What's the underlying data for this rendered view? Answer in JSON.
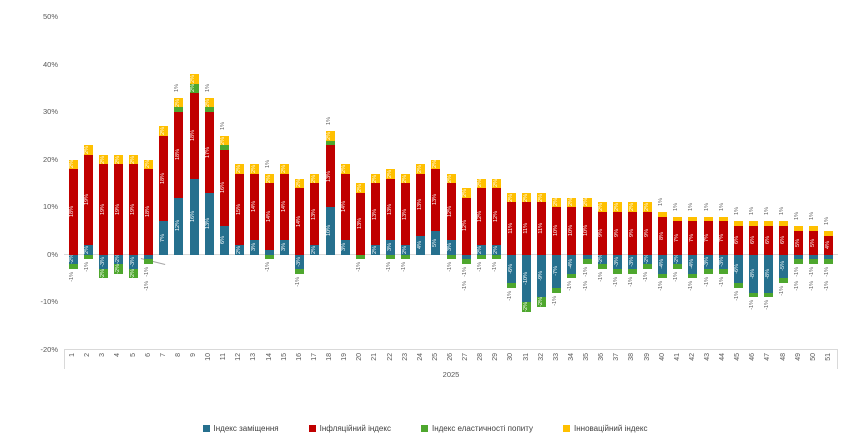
{
  "chart_data": {
    "type": "bar",
    "stacked": true,
    "title": "",
    "x_axis_group_label": "2025",
    "categories": [
      "1",
      "2",
      "3",
      "4",
      "5",
      "6",
      "7",
      "8",
      "9",
      "10",
      "11",
      "12",
      "13",
      "14",
      "15",
      "16",
      "17",
      "18",
      "19",
      "20",
      "21",
      "22",
      "23",
      "24",
      "25",
      "26",
      "27",
      "28",
      "29",
      "30",
      "31",
      "32",
      "33",
      "34",
      "35",
      "36",
      "37",
      "38",
      "39",
      "40",
      "41",
      "42",
      "43",
      "44",
      "45",
      "46",
      "47",
      "48",
      "49",
      "50",
      "51"
    ],
    "ylim": [
      -20,
      50
    ],
    "grid": false,
    "legend_position": "bottom",
    "y_ticks": [
      {
        "label": "50%",
        "value": 50
      },
      {
        "label": "40%",
        "value": 40
      },
      {
        "label": "30%",
        "value": 30
      },
      {
        "label": "20%",
        "value": 20
      },
      {
        "label": "10%",
        "value": 10
      },
      {
        "label": "0%",
        "value": 0
      },
      {
        "label": "-10%",
        "value": -10
      },
      {
        "label": "-20%",
        "value": -20
      }
    ],
    "series": [
      {
        "name": "Індекс заміщення",
        "color": "#26708E",
        "values": [
          -2,
          2,
          -3,
          -2,
          -3,
          -1,
          7,
          12,
          16,
          13,
          6,
          2,
          3,
          1,
          3,
          -3,
          2,
          10,
          3,
          0,
          2,
          3,
          2,
          4,
          5,
          3,
          -1,
          2,
          2,
          -6,
          -10,
          -9,
          -7,
          -4,
          -1,
          -2,
          -3,
          -3,
          -2,
          -4,
          -2,
          -4,
          -3,
          -3,
          -6,
          -8,
          -8,
          -5,
          -1,
          -1,
          -1
        ]
      },
      {
        "name": "Інфляційний індекс",
        "color": "#C00000",
        "values": [
          18,
          19,
          19,
          19,
          19,
          18,
          18,
          18,
          18,
          17,
          16,
          15,
          14,
          14,
          14,
          14,
          13,
          13,
          14,
          13,
          13,
          13,
          13,
          13,
          13,
          12,
          12,
          12,
          12,
          11,
          11,
          11,
          10,
          10,
          10,
          9,
          9,
          9,
          9,
          8,
          7,
          7,
          7,
          7,
          6,
          6,
          6,
          6,
          5,
          5,
          4
        ]
      },
      {
        "name": "Індекс еластичності попиту",
        "color": "#4EA72E",
        "values": [
          -1,
          -1,
          -2,
          -2,
          -2,
          -1,
          0,
          1,
          2,
          1,
          1,
          0,
          0,
          -1,
          0,
          -1,
          0,
          1,
          0,
          -1,
          0,
          -1,
          -1,
          0,
          0,
          -1,
          -1,
          -1,
          -1,
          -1,
          -2,
          -2,
          -1,
          -1,
          -1,
          -1,
          -1,
          -1,
          -1,
          -1,
          -1,
          -1,
          -1,
          -1,
          -1,
          -1,
          -1,
          -1,
          -1,
          -1,
          -1
        ]
      },
      {
        "name": "Інноваційний індекс",
        "color": "#FFC000",
        "values": [
          2,
          2,
          2,
          2,
          2,
          2,
          2,
          2,
          2,
          2,
          2,
          2,
          2,
          2,
          2,
          2,
          2,
          2,
          2,
          2,
          2,
          2,
          2,
          2,
          2,
          2,
          2,
          2,
          2,
          2,
          2,
          2,
          2,
          2,
          2,
          2,
          2,
          2,
          2,
          1,
          1,
          1,
          1,
          1,
          1,
          1,
          1,
          1,
          1,
          1,
          1
        ]
      }
    ]
  }
}
